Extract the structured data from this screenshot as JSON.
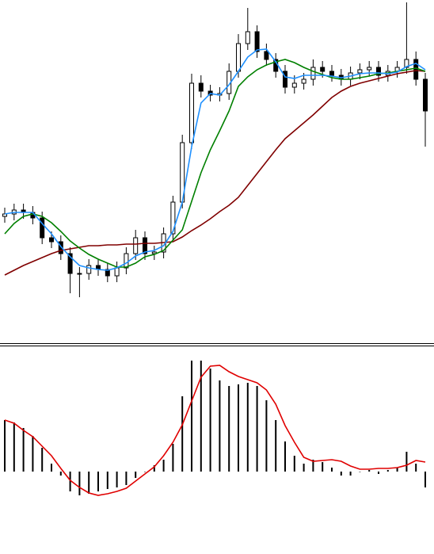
{
  "chart_data": [
    {
      "type": "candlestick",
      "ylim": [
        0,
        435
      ],
      "open": [
        162,
        165,
        170,
        167,
        160,
        135,
        130,
        115,
        90,
        90,
        100,
        95,
        87,
        97,
        115,
        135,
        115,
        117,
        140,
        180,
        255,
        330,
        320,
        315,
        317,
        345,
        380,
        395,
        370,
        360,
        345,
        325,
        330,
        335,
        350,
        345,
        340,
        335,
        343,
        347,
        350,
        340,
        345,
        350,
        360,
        335
      ],
      "high": [
        173,
        178,
        178,
        175,
        168,
        143,
        138,
        123,
        98,
        108,
        108,
        103,
        105,
        123,
        145,
        143,
        125,
        148,
        188,
        265,
        342,
        340,
        328,
        325,
        355,
        392,
        425,
        403,
        380,
        368,
        353,
        340,
        343,
        360,
        358,
        353,
        348,
        351,
        355,
        358,
        358,
        353,
        358,
        432,
        370,
        343
      ],
      "low": [
        154,
        157,
        159,
        152,
        127,
        122,
        107,
        65,
        60,
        82,
        87,
        79,
        79,
        89,
        107,
        107,
        107,
        109,
        132,
        172,
        247,
        312,
        307,
        307,
        309,
        337,
        372,
        362,
        352,
        337,
        317,
        317,
        322,
        327,
        337,
        332,
        327,
        327,
        335,
        339,
        332,
        332,
        337,
        342,
        327,
        250
      ],
      "close": [
        165,
        170,
        167,
        160,
        135,
        130,
        115,
        90,
        90,
        100,
        95,
        87,
        97,
        115,
        135,
        115,
        117,
        140,
        180,
        255,
        330,
        320,
        315,
        317,
        345,
        380,
        395,
        370,
        360,
        345,
        325,
        330,
        335,
        350,
        345,
        340,
        335,
        343,
        347,
        350,
        340,
        345,
        350,
        360,
        335,
        295
      ],
      "bull_color": "#ffffff",
      "bear_color": "#000000",
      "series": [
        {
          "color": "#800000",
          "values": [
            88,
            94,
            100,
            105,
            110,
            115,
            119,
            121,
            123,
            125,
            125,
            126,
            126,
            127,
            127,
            128,
            128,
            129,
            130,
            136,
            144,
            151,
            159,
            168,
            176,
            186,
            201,
            216,
            231,
            246,
            260,
            270,
            280,
            290,
            301,
            312,
            320,
            326,
            330,
            333,
            336,
            339,
            342,
            344,
            346,
            345
          ]
        },
        {
          "color": "#008000",
          "values": [
            140,
            153,
            162,
            165,
            162,
            154,
            143,
            131,
            122,
            114,
            108,
            103,
            98,
            98,
            103,
            111,
            114,
            119,
            132,
            145,
            181,
            217,
            246,
            270,
            295,
            326,
            338,
            347,
            353,
            357,
            360,
            356,
            350,
            345,
            341,
            337,
            335,
            335,
            337,
            339,
            342,
            343,
            345,
            347,
            349,
            345
          ]
        },
        {
          "color": "#1e90ff",
          "values": [
            165,
            167,
            167,
            167,
            153,
            140,
            124,
            111,
            100,
            97,
            95,
            94,
            97,
            103,
            112,
            117,
            119,
            125,
            143,
            180,
            250,
            305,
            317,
            315,
            328,
            345,
            363,
            372,
            373,
            357,
            338,
            336,
            340,
            340,
            340,
            339,
            337,
            339,
            342,
            343,
            343,
            342,
            344,
            351,
            355,
            347
          ]
        }
      ]
    },
    {
      "type": "macd",
      "ylim": [
        -104,
        155
      ],
      "values": [
        65,
        62,
        55,
        45,
        30,
        10,
        -5,
        -25,
        -30,
        -28,
        -25,
        -22,
        -20,
        -17,
        -8,
        0,
        8,
        15,
        35,
        95,
        140,
        140,
        130,
        115,
        108,
        110,
        112,
        108,
        90,
        65,
        38,
        20,
        10,
        15,
        12,
        5,
        -5,
        -5,
        0,
        2,
        -3,
        2,
        5,
        25,
        10,
        -20
      ],
      "color": "#000000",
      "series": [
        {
          "color": "#e00000",
          "values": [
            65,
            61,
            52,
            44,
            32,
            20,
            4,
            -11,
            -20,
            -27,
            -30,
            -28,
            -25,
            -21,
            -12,
            -3,
            6,
            20,
            37,
            59,
            89,
            119,
            133,
            134,
            126,
            120,
            116,
            112,
            103,
            85,
            58,
            37,
            18,
            13,
            14,
            15,
            13,
            7,
            3,
            3,
            4,
            4,
            5,
            8,
            14,
            12
          ]
        }
      ]
    }
  ]
}
